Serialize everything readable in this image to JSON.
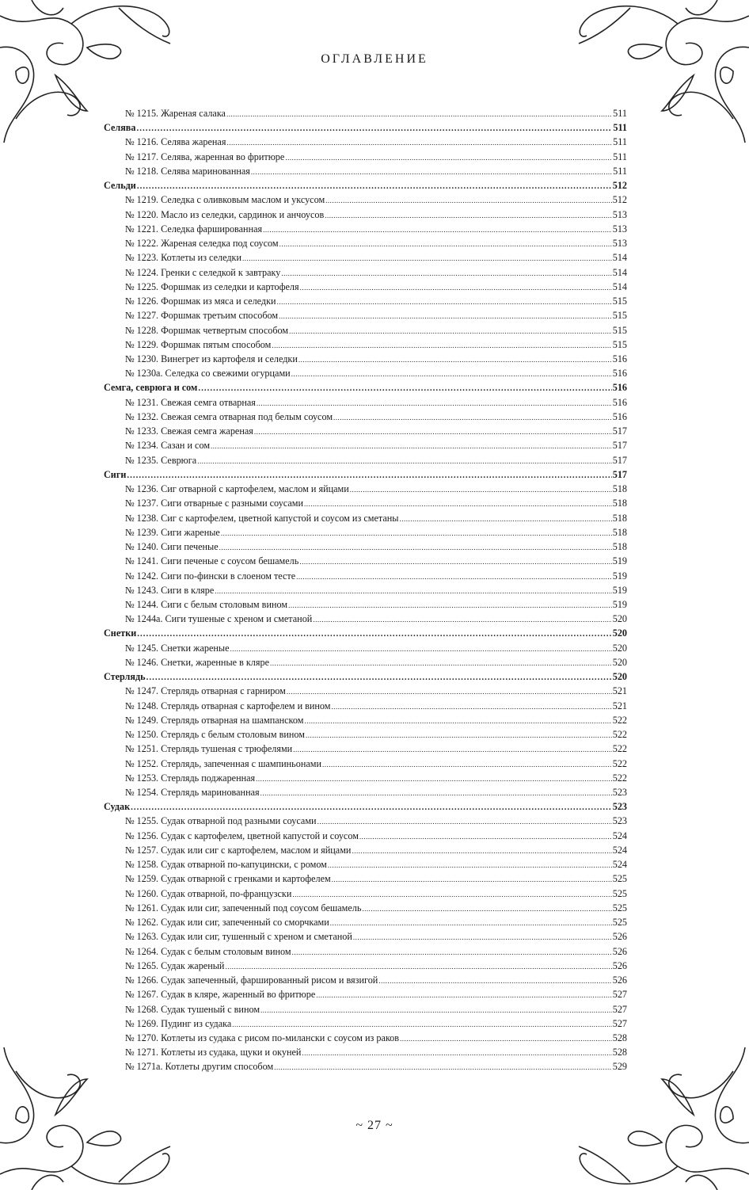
{
  "header": {
    "title": "ОГЛАВЛЕНИЕ"
  },
  "footer": {
    "page_number": "~ 27 ~"
  },
  "toc": [
    {
      "type": "entry",
      "label": "№ 1215. Жареная салака",
      "page": "511"
    },
    {
      "type": "section",
      "label": "Селява",
      "page": "511"
    },
    {
      "type": "entry",
      "label": "№ 1216. Селява жареная",
      "page": "511"
    },
    {
      "type": "entry",
      "label": "№ 1217. Селява, жаренная во фритюре",
      "page": "511"
    },
    {
      "type": "entry",
      "label": "№ 1218. Селява маринованная",
      "page": "511"
    },
    {
      "type": "section",
      "label": "Сельди",
      "page": "512"
    },
    {
      "type": "entry",
      "label": "№ 1219. Селедка с оливковым маслом и уксусом",
      "page": "512"
    },
    {
      "type": "entry",
      "label": "№ 1220. Масло из селедки, сардинок и анчоусов",
      "page": "513"
    },
    {
      "type": "entry",
      "label": "№ 1221. Селедка фаршированная",
      "page": "513"
    },
    {
      "type": "entry",
      "label": "№ 1222. Жареная селедка под соусом",
      "page": "513"
    },
    {
      "type": "entry",
      "label": "№ 1223. Котлеты из селедки",
      "page": "514"
    },
    {
      "type": "entry",
      "label": "№ 1224. Гренки с селедкой к завтраку",
      "page": "514"
    },
    {
      "type": "entry",
      "label": "№ 1225. Форшмак из селедки и картофеля",
      "page": "514"
    },
    {
      "type": "entry",
      "label": "№ 1226. Форшмак из мяса и селедки",
      "page": "515"
    },
    {
      "type": "entry",
      "label": "№ 1227. Форшмак третьим способом",
      "page": "515"
    },
    {
      "type": "entry",
      "label": "№ 1228. Форшмак четвертым способом",
      "page": "515"
    },
    {
      "type": "entry",
      "label": "№ 1229. Форшмак пятым способом",
      "page": "515"
    },
    {
      "type": "entry",
      "label": "№ 1230. Винегрет из картофеля и селедки",
      "page": "516"
    },
    {
      "type": "entry",
      "label": "№ 1230а. Селедка со свежими огурцами",
      "page": "516"
    },
    {
      "type": "section",
      "label": "Семга, севрюга и сом",
      "page": "516"
    },
    {
      "type": "entry",
      "label": "№ 1231. Свежая семга отварная",
      "page": "516"
    },
    {
      "type": "entry",
      "label": "№ 1232. Свежая семга отварная под белым соусом",
      "page": "516"
    },
    {
      "type": "entry",
      "label": "№ 1233. Свежая семга жареная",
      "page": "517"
    },
    {
      "type": "entry",
      "label": "№ 1234. Сазан и сом",
      "page": "517"
    },
    {
      "type": "entry",
      "label": "№ 1235. Севрюга",
      "page": "517"
    },
    {
      "type": "section",
      "label": "Сиги",
      "page": "517"
    },
    {
      "type": "entry",
      "label": "№ 1236. Сиг отварной с картофелем, маслом и яйцами",
      "page": "518"
    },
    {
      "type": "entry",
      "label": "№ 1237. Сиги отварные с разными соусами",
      "page": "518"
    },
    {
      "type": "entry",
      "label": "№ 1238. Сиг с картофелем, цветной капустой и соусом из сметаны",
      "page": "518"
    },
    {
      "type": "entry",
      "label": "№ 1239. Сиги жареные",
      "page": "518"
    },
    {
      "type": "entry",
      "label": "№ 1240. Сиги печеные",
      "page": "518"
    },
    {
      "type": "entry",
      "label": "№ 1241. Сиги печеные с соусом бешамель",
      "page": "519"
    },
    {
      "type": "entry",
      "label": "№ 1242. Сиги по-фински в слоеном тесте",
      "page": "519"
    },
    {
      "type": "entry",
      "label": "№ 1243. Сиги в кляре",
      "page": "519"
    },
    {
      "type": "entry",
      "label": "№ 1244. Сиги с белым столовым вином",
      "page": "519"
    },
    {
      "type": "entry",
      "label": "№ 1244а. Сиги тушеные с хреном и сметаной",
      "page": "520"
    },
    {
      "type": "section",
      "label": "Снетки",
      "page": "520"
    },
    {
      "type": "entry",
      "label": "№ 1245. Снетки жареные",
      "page": "520"
    },
    {
      "type": "entry",
      "label": "№ 1246. Снетки, жаренные в кляре",
      "page": "520"
    },
    {
      "type": "section",
      "label": "Стерлядь",
      "page": "520"
    },
    {
      "type": "entry",
      "label": "№ 1247. Стерлядь отварная с гарниром",
      "page": "521"
    },
    {
      "type": "entry",
      "label": "№ 1248. Стерлядь отварная с картофелем и вином",
      "page": "521"
    },
    {
      "type": "entry",
      "label": "№ 1249. Стерлядь отварная на шампанском",
      "page": "522"
    },
    {
      "type": "entry",
      "label": "№ 1250. Стерлядь с белым столовым вином",
      "page": "522"
    },
    {
      "type": "entry",
      "label": "№ 1251. Стерлядь тушеная с трюфелями",
      "page": "522"
    },
    {
      "type": "entry",
      "label": "№ 1252. Стерлядь, запеченная с шампиньонами",
      "page": "522"
    },
    {
      "type": "entry",
      "label": "№ 1253. Стерлядь поджаренная",
      "page": "522"
    },
    {
      "type": "entry",
      "label": "№ 1254. Стерлядь маринованная",
      "page": "523"
    },
    {
      "type": "section",
      "label": "Судак",
      "page": "523"
    },
    {
      "type": "entry",
      "label": "№ 1255. Судак отварной под разными соусами",
      "page": "523"
    },
    {
      "type": "entry",
      "label": "№ 1256. Судак с картофелем, цветной капустой и соусом",
      "page": "524"
    },
    {
      "type": "entry",
      "label": "№ 1257. Судак или сиг с картофелем, маслом и яйцами",
      "page": "524"
    },
    {
      "type": "entry",
      "label": "№ 1258. Судак отварной по-капуцински, с ромом",
      "page": "524"
    },
    {
      "type": "entry",
      "label": "№ 1259. Судак отварной с гренками и картофелем",
      "page": "525"
    },
    {
      "type": "entry",
      "label": "№ 1260. Судак отварной, по-французски",
      "page": "525"
    },
    {
      "type": "entry",
      "label": "№ 1261. Судак или сиг, запеченный под соусом бешамель",
      "page": "525"
    },
    {
      "type": "entry",
      "label": "№ 1262. Судак или сиг, запеченный со сморчками",
      "page": "525"
    },
    {
      "type": "entry",
      "label": "№ 1263. Судак или сиг, тушенный с хреном и сметаной",
      "page": "526"
    },
    {
      "type": "entry",
      "label": "№ 1264. Судак с белым столовым вином",
      "page": "526"
    },
    {
      "type": "entry",
      "label": "№ 1265. Судак жареный",
      "page": "526"
    },
    {
      "type": "entry",
      "label": "№ 1266. Судак запеченный, фаршированный рисом и вязигой",
      "page": "526"
    },
    {
      "type": "entry",
      "label": "№ 1267. Судак в кляре, жаренный во фритюре",
      "page": "527"
    },
    {
      "type": "entry",
      "label": "№ 1268. Судак тушеный с вином",
      "page": "527"
    },
    {
      "type": "entry",
      "label": "№ 1269. Пудинг из судака",
      "page": "527"
    },
    {
      "type": "entry",
      "label": "№ 1270. Котлеты из судака с рисом по-милански с соусом из раков",
      "page": "528"
    },
    {
      "type": "entry",
      "label": "№ 1271. Котлеты из судака, щуки и окуней",
      "page": "528"
    },
    {
      "type": "entry",
      "label": "№ 1271а. Котлеты другим способом",
      "page": "529"
    }
  ]
}
